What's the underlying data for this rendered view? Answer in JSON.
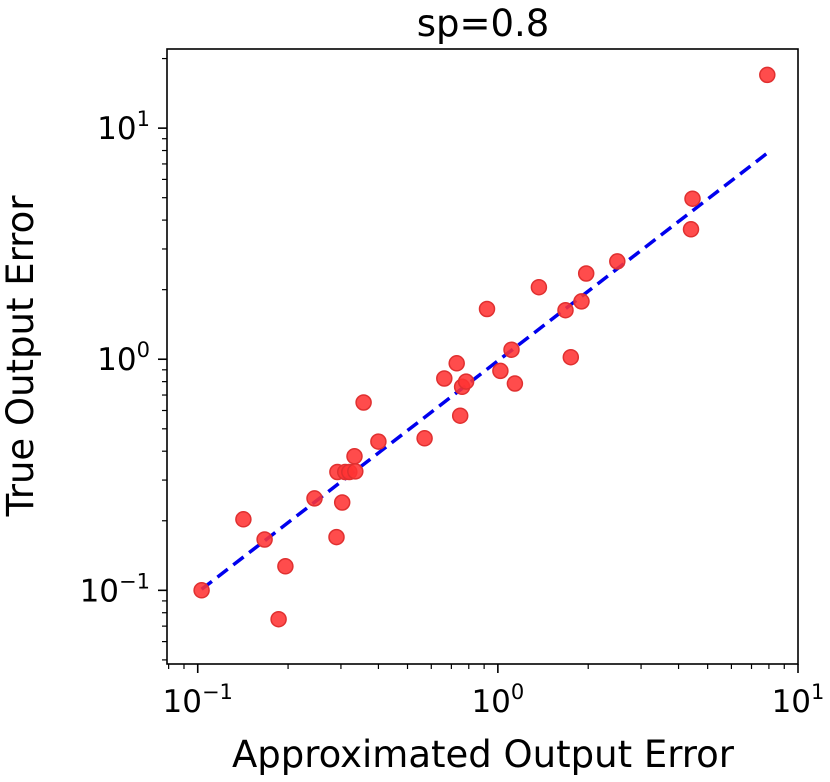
{
  "chart_data": {
    "type": "scatter",
    "title": "sp=0.8",
    "xlabel": "Approximated Output Error",
    "ylabel": "True Output Error",
    "xscale": "log",
    "yscale": "log",
    "xlim": [
      0.079,
      10
    ],
    "ylim": [
      0.048,
      22
    ],
    "xticks": [
      {
        "value": 0.1,
        "base": "10",
        "exp": "−1"
      },
      {
        "value": 1,
        "base": "10",
        "exp": "0"
      },
      {
        "value": 10,
        "base": "10",
        "exp": "1"
      }
    ],
    "yticks": [
      {
        "value": 0.1,
        "base": "10",
        "exp": "−1"
      },
      {
        "value": 1,
        "base": "10",
        "exp": "0"
      },
      {
        "value": 10,
        "base": "10",
        "exp": "1"
      }
    ],
    "grid": false,
    "series": [
      {
        "kind": "points",
        "color": "#ff3333",
        "edge_color": "#e03030",
        "x": [
          0.103,
          0.142,
          0.167,
          0.186,
          0.196,
          0.245,
          0.29,
          0.292,
          0.303,
          0.31,
          0.32,
          0.333,
          0.335,
          0.357,
          0.4,
          0.57,
          0.663,
          0.729,
          0.749,
          0.76,
          0.784,
          0.92,
          1.02,
          1.11,
          1.14,
          1.37,
          1.68,
          1.75,
          1.9,
          1.97,
          2.5,
          4.4,
          4.45,
          7.9
        ],
        "y": [
          0.1,
          0.203,
          0.166,
          0.075,
          0.127,
          0.25,
          0.17,
          0.325,
          0.24,
          0.325,
          0.325,
          0.38,
          0.327,
          0.65,
          0.44,
          0.455,
          0.825,
          0.96,
          0.57,
          0.76,
          0.8,
          1.65,
          0.89,
          1.1,
          0.785,
          2.05,
          1.63,
          1.02,
          1.78,
          2.35,
          2.65,
          3.65,
          4.95,
          17.0
        ]
      },
      {
        "kind": "fit-line",
        "color": "#0000ee",
        "style": "dashed",
        "x": [
          0.103,
          7.9
        ],
        "y": [
          0.101,
          7.8
        ]
      }
    ]
  }
}
